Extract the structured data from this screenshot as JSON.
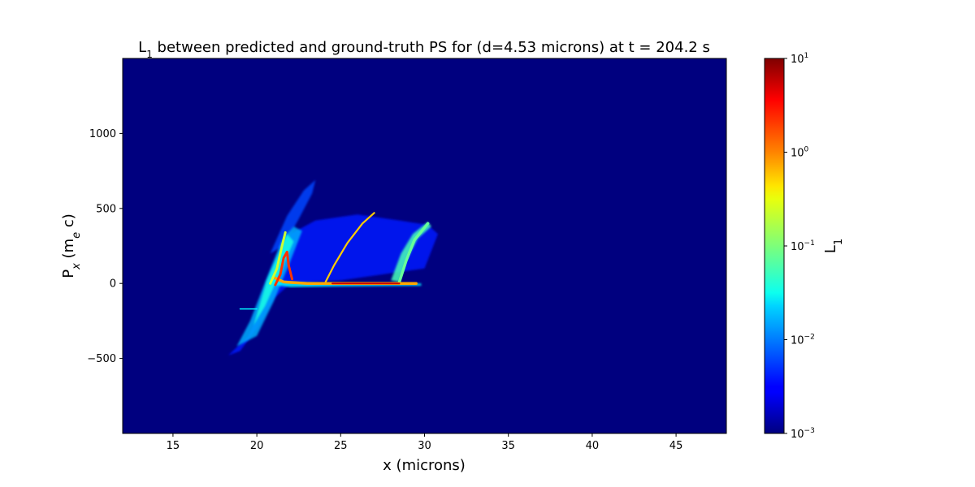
{
  "chart_data": {
    "type": "heatmap",
    "title_parts": [
      "L",
      "1",
      " between predicted and ground-truth PS for (d=4.53 microns) at t = 204.2 s"
    ],
    "xlabel": "x (microns)",
    "ylabel_parts": [
      "P",
      "x",
      " (m",
      "e",
      " c)"
    ],
    "xlim": [
      12,
      48
    ],
    "ylim": [
      -1000,
      1500
    ],
    "xticks": [
      15,
      20,
      25,
      30,
      35,
      40,
      45
    ],
    "yticks": [
      -500,
      0,
      500,
      1000
    ],
    "ytick_labels": [
      "−500",
      "0",
      "500",
      "1000"
    ],
    "background_value": 0.001,
    "colormap": "jet",
    "colorbar": {
      "label_parts": [
        "L",
        "1"
      ],
      "scale": "log",
      "range": [
        0.001,
        10
      ],
      "ticks": [
        {
          "value": 10,
          "base": "10",
          "exp": "1"
        },
        {
          "value": 1,
          "base": "10",
          "exp": "0"
        },
        {
          "value": 0.1,
          "base": "10",
          "exp": "−1"
        },
        {
          "value": 0.01,
          "base": "10",
          "exp": "−2"
        },
        {
          "value": 0.001,
          "base": "10",
          "exp": "−3"
        }
      ]
    },
    "features": [
      {
        "name": "diffuse-wedge",
        "points": [
          [
            18.3,
            -480
          ],
          [
            19.5,
            -350
          ],
          [
            20.5,
            -100
          ],
          [
            21.3,
            120
          ],
          [
            22.0,
            330
          ],
          [
            23.5,
            420
          ],
          [
            26.0,
            460
          ],
          [
            28.5,
            420
          ],
          [
            30.2,
            390
          ],
          [
            30.8,
            330
          ],
          [
            30.0,
            100
          ],
          [
            25.0,
            20
          ],
          [
            22.0,
            0
          ],
          [
            21.0,
            -100
          ],
          [
            20.0,
            -300
          ],
          [
            19.0,
            -450
          ]
        ],
        "value": 0.004
      },
      {
        "name": "fan-left",
        "points": [
          [
            20.8,
            200
          ],
          [
            21.8,
            450
          ],
          [
            22.8,
            620
          ],
          [
            23.5,
            690
          ],
          [
            23.3,
            600
          ],
          [
            22.5,
            430
          ],
          [
            21.6,
            250
          ]
        ],
        "value": 0.006
      },
      {
        "name": "dense-streak-band",
        "points": [
          [
            18.8,
            -420
          ],
          [
            19.6,
            -250
          ],
          [
            20.6,
            40
          ],
          [
            21.5,
            290
          ],
          [
            22.2,
            380
          ],
          [
            22.7,
            350
          ],
          [
            22.0,
            150
          ],
          [
            21.0,
            -120
          ],
          [
            20.0,
            -350
          ]
        ],
        "value": 0.015
      },
      {
        "name": "left-streak-core",
        "points": [
          [
            19.8,
            -280
          ],
          [
            20.6,
            20
          ],
          [
            21.3,
            200
          ],
          [
            21.8,
            330
          ],
          [
            22.2,
            280
          ],
          [
            21.5,
            100
          ],
          [
            20.5,
            -150
          ]
        ],
        "value": 0.04
      },
      {
        "name": "arc-right-band",
        "points": [
          [
            28.0,
            20
          ],
          [
            28.6,
            200
          ],
          [
            29.3,
            330
          ],
          [
            30.2,
            410
          ],
          [
            30.4,
            380
          ],
          [
            29.6,
            300
          ],
          [
            28.9,
            150
          ],
          [
            28.5,
            10
          ]
        ],
        "value": 0.06
      },
      {
        "name": "flat-band-cyan",
        "points": [
          [
            21.0,
            20
          ],
          [
            22.0,
            10
          ],
          [
            25.0,
            0
          ],
          [
            29.8,
            0
          ],
          [
            29.8,
            -15
          ],
          [
            25.0,
            -20
          ],
          [
            22.0,
            -25
          ],
          [
            21.0,
            -10
          ]
        ],
        "value": 0.03
      }
    ],
    "lines": [
      {
        "name": "yellow-arc",
        "points": [
          [
            24.1,
            10
          ],
          [
            24.6,
            120
          ],
          [
            25.4,
            270
          ],
          [
            26.3,
            400
          ],
          [
            27.0,
            470
          ]
        ],
        "value": 0.5,
        "width": 2.2
      },
      {
        "name": "green-arc",
        "points": [
          [
            28.5,
            10
          ],
          [
            28.9,
            150
          ],
          [
            29.4,
            290
          ],
          [
            30.2,
            400
          ]
        ],
        "value": 0.08,
        "width": 3.5
      },
      {
        "name": "flat-yellow",
        "points": [
          [
            21.0,
            40
          ],
          [
            21.6,
            10
          ],
          [
            23.0,
            0
          ],
          [
            26.0,
            0
          ],
          [
            29.5,
            0
          ]
        ],
        "value": 0.7,
        "width": 3.5
      },
      {
        "name": "flat-red",
        "points": [
          [
            24.5,
            0
          ],
          [
            27.0,
            0
          ],
          [
            28.5,
            0
          ]
        ],
        "value": 5,
        "width": 2
      },
      {
        "name": "spike-core",
        "points": [
          [
            21.1,
            -10
          ],
          [
            21.4,
            60
          ],
          [
            21.6,
            170
          ],
          [
            21.8,
            210
          ],
          [
            21.9,
            120
          ],
          [
            22.1,
            30
          ]
        ],
        "value": 2,
        "width": 3
      },
      {
        "name": "spike-side",
        "points": [
          [
            20.8,
            0
          ],
          [
            21.2,
            100
          ],
          [
            21.5,
            250
          ],
          [
            21.7,
            340
          ]
        ],
        "value": 0.2,
        "width": 3
      },
      {
        "name": "short-cyan-tail",
        "points": [
          [
            19.0,
            -170
          ],
          [
            20.0,
            -170
          ]
        ],
        "value": 0.03,
        "width": 1.5
      }
    ]
  }
}
